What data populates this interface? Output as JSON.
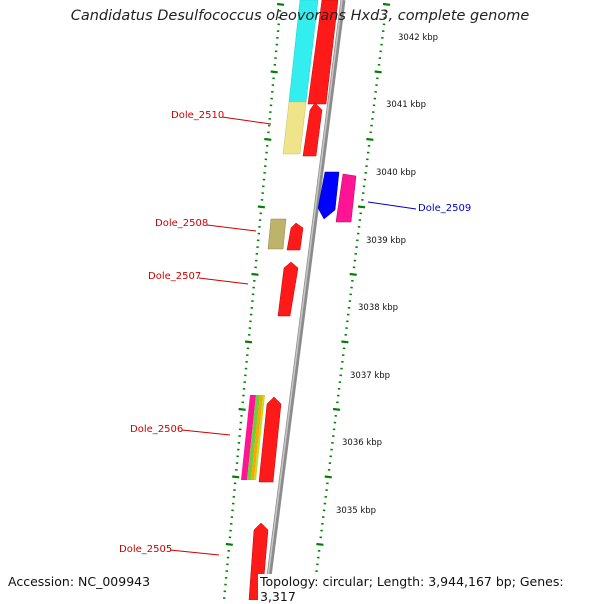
{
  "title": "Candidatus Desulfococcus oleovorans Hxd3, complete genome",
  "footer": {
    "accession": "Accession: NC_009943",
    "topology": "Topology: circular; Length: 3,944,167 bp; Genes: 3,317"
  },
  "colors": {
    "gene_red": "#ff0000",
    "gene_blue": "#0000ff",
    "gene_magenta": "#ff1493",
    "gene_cyan": "#00ffff",
    "gene_pale_yellow": "#f0e68c",
    "gene_khaki": "#bdb76b",
    "label_red": "#cc0000",
    "label_blue": "#0000cc",
    "tick_green": "#008000",
    "backbone": "#888888"
  },
  "scale_labels": [
    "3042 kbp",
    "3041 kbp",
    "3040 kbp",
    "3039 kbp",
    "3038 kbp",
    "3037 kbp",
    "3036 kbp",
    "3035 kbp"
  ],
  "gene_labels": [
    {
      "text": "Dole_2510",
      "strand": "reverse"
    },
    {
      "text": "Dole_2509",
      "strand": "forward"
    },
    {
      "text": "Dole_2508",
      "strand": "reverse"
    },
    {
      "text": "Dole_2507",
      "strand": "reverse"
    },
    {
      "text": "Dole_2506",
      "strand": "reverse"
    },
    {
      "text": "Dole_2505",
      "strand": "reverse"
    }
  ]
}
